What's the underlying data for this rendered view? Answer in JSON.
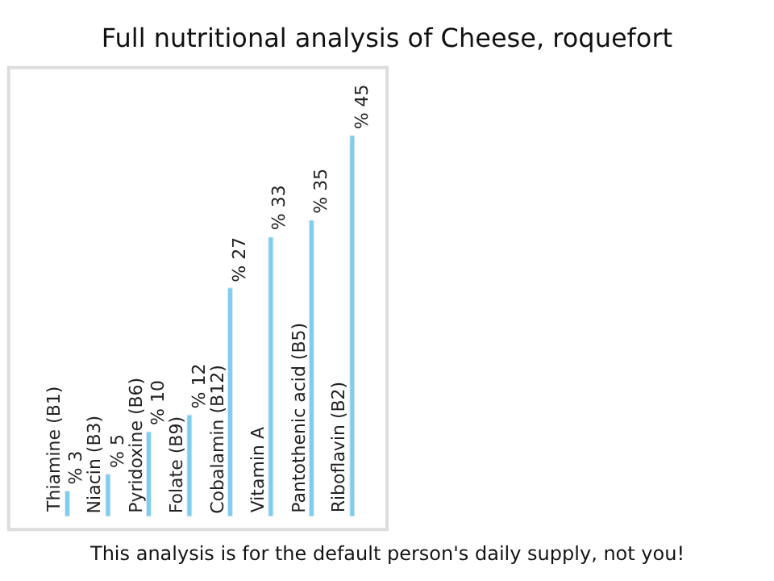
{
  "chart_data": {
    "type": "bar",
    "title": "Full nutritional analysis of Cheese, roquefort",
    "categories": [
      "Thiamine (B1)",
      "Niacin (B3)",
      "Pyridoxine (B6)",
      "Folate (B9)",
      "Cobalamin (B12)",
      "Vitamin A",
      "Pantothenic acid (B5)",
      "Riboflavin (B2)"
    ],
    "values": [
      3,
      5,
      10,
      12,
      27,
      33,
      35,
      45
    ],
    "value_labels": [
      "% 3",
      "% 5",
      "% 10",
      "% 12",
      "% 27",
      "% 33",
      "% 35",
      "% 45"
    ],
    "color": "#7fcdee",
    "legend": false,
    "annotations": [
      "This analysis is for the default person's daily supply, not you!"
    ]
  }
}
